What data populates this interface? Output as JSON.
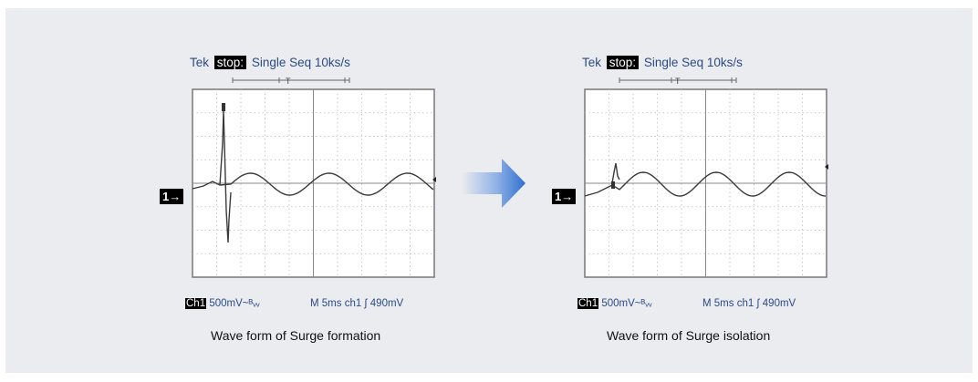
{
  "scopes": [
    {
      "header": {
        "brand": "Tek",
        "state": "stop:",
        "mode": "Single Seq 10ks/s"
      },
      "marker": "1→",
      "footer": {
        "ch_badge": "Ch1",
        "scale": "500mV~ᴮᵥᵥ",
        "timebase": "M  5ms  ch1  ∫ 490mV"
      },
      "caption": "Wave form of Surge formation"
    },
    {
      "header": {
        "brand": "Tek",
        "state": "stop:",
        "mode": "Single Seq 10ks/s"
      },
      "marker": "1→",
      "footer": {
        "ch_badge": "Ch1",
        "scale": "500mV~ᴮᵥᵥ",
        "timebase": "M  5ms  ch1  ∫ 490mV"
      },
      "caption": "Wave form of Surge isolation"
    }
  ],
  "arrow_icon": "right-arrow-icon",
  "colors": {
    "panel": "#eaecef",
    "header_text": "#2c4a86",
    "arrow": "#3d78d4",
    "trace": "#3a3a3a"
  }
}
